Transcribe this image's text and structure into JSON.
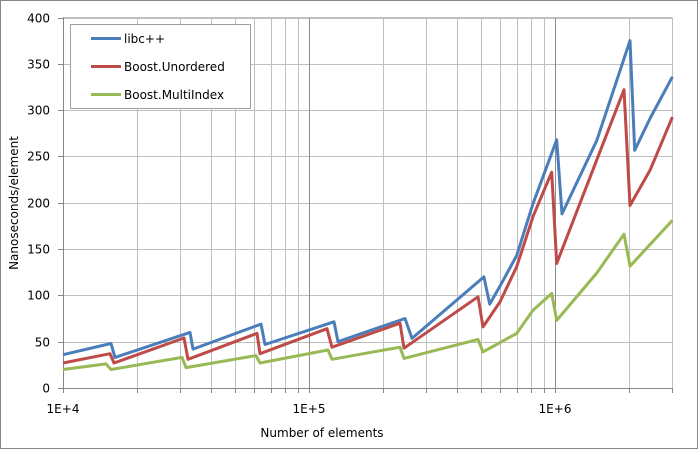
{
  "chart_data": {
    "type": "line",
    "title": "",
    "xlabel": "Number of elements",
    "ylabel": "Nanoseconds/element",
    "x_scale": "log",
    "xlim": [
      10000,
      3000000
    ],
    "ylim": [
      0,
      400
    ],
    "x_tick_labels": [
      "1E+4",
      "1E+5",
      "1E+6"
    ],
    "y_tick_labels": [
      "0",
      "50",
      "100",
      "150",
      "200",
      "250",
      "300",
      "350",
      "400"
    ],
    "grid": true,
    "legend_position": "top-left",
    "series": [
      {
        "name": "libc++",
        "color": "#4a7ebb",
        "points": [
          [
            10000,
            36
          ],
          [
            15670,
            48
          ],
          [
            16270,
            33
          ],
          [
            32840,
            60
          ],
          [
            33770,
            42
          ],
          [
            63810,
            69
          ],
          [
            66250,
            47
          ],
          [
            126400,
            71.5
          ],
          [
            131200,
            50
          ],
          [
            245600,
            75
          ],
          [
            262200,
            53.6
          ],
          [
            514000,
            120
          ],
          [
            542800,
            90.6
          ],
          [
            597500,
            110
          ],
          [
            698800,
            143
          ],
          [
            813800,
            199
          ],
          [
            1016000,
            268
          ],
          [
            1068000,
            188
          ],
          [
            1477000,
            267
          ],
          [
            2018000,
            375
          ],
          [
            2109000,
            256.6
          ],
          [
            2434000,
            291
          ],
          [
            3000000,
            336
          ]
        ]
      },
      {
        "name": "Boost.Unordered",
        "color": "#be4b48",
        "points": [
          [
            10000,
            27
          ],
          [
            15530,
            37
          ],
          [
            16120,
            27
          ],
          [
            31040,
            54
          ],
          [
            32220,
            31
          ],
          [
            61460,
            59
          ],
          [
            63220,
            37
          ],
          [
            118400,
            64
          ],
          [
            124000,
            44
          ],
          [
            234400,
            70
          ],
          [
            243300,
            43
          ],
          [
            486500,
            98.5
          ],
          [
            509800,
            66
          ],
          [
            597500,
            93
          ],
          [
            698800,
            131
          ],
          [
            813800,
            185
          ],
          [
            969700,
            233
          ],
          [
            1016000,
            134.5
          ],
          [
            1477000,
            246
          ],
          [
            1908000,
            322
          ],
          [
            2018000,
            197
          ],
          [
            2434000,
            235
          ],
          [
            3000000,
            292.5
          ]
        ]
      },
      {
        "name": "Boost.MultiIndex",
        "color": "#98b954",
        "points": [
          [
            10000,
            20
          ],
          [
            14950,
            26
          ],
          [
            15670,
            20
          ],
          [
            30450,
            33
          ],
          [
            31620,
            22
          ],
          [
            60900,
            35
          ],
          [
            63220,
            27
          ],
          [
            119500,
            41
          ],
          [
            124000,
            31
          ],
          [
            234400,
            44
          ],
          [
            243300,
            32
          ],
          [
            486500,
            52.5
          ],
          [
            509800,
            39
          ],
          [
            698800,
            59
          ],
          [
            813800,
            84
          ],
          [
            969700,
            102
          ],
          [
            1016000,
            73
          ],
          [
            1477000,
            124
          ],
          [
            1908000,
            166
          ],
          [
            2018000,
            131.5
          ],
          [
            3000000,
            181
          ]
        ]
      }
    ]
  }
}
